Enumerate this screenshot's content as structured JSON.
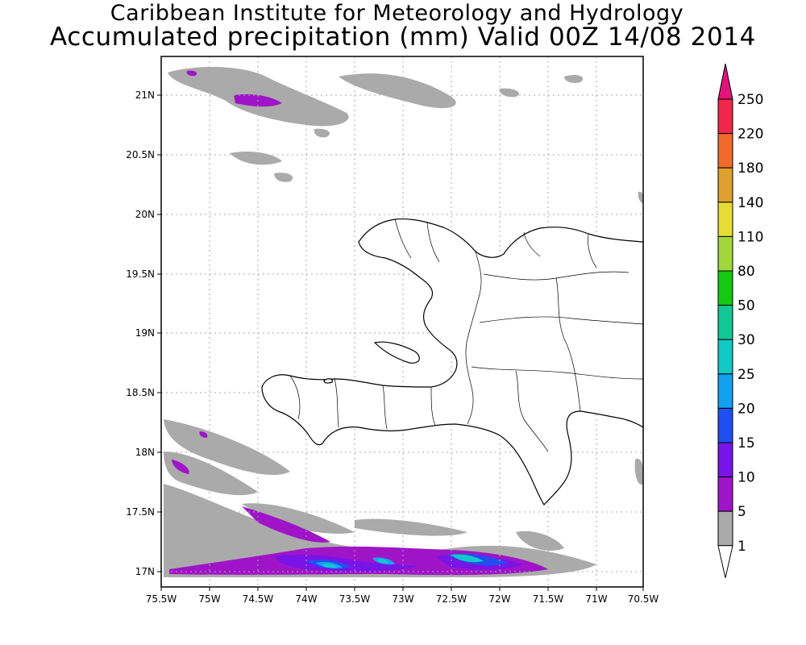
{
  "header": {
    "institute": "Caribbean Institute for Meteorology and Hydrology",
    "title": "Accumulated precipitation (mm) Valid 00Z 14/08 2014"
  },
  "map": {
    "lon_range": [
      -75.5,
      -70.5
    ],
    "lat_range": [
      16.9,
      21.3
    ],
    "grid": "dotted",
    "lon_ticks": [
      "75.5W",
      "75W",
      "74.5W",
      "74W",
      "73.5W",
      "73W",
      "72.5W",
      "72W",
      "71.5W",
      "71W",
      "70.5W"
    ],
    "lat_ticks": [
      "21N",
      "20.5N",
      "20N",
      "19.5N",
      "19N",
      "18.5N",
      "18N",
      "17.5N",
      "17N"
    ]
  },
  "colorbar": {
    "levels": [
      "250",
      "220",
      "180",
      "140",
      "110",
      "80",
      "50",
      "30",
      "25",
      "20",
      "15",
      "10",
      "5",
      "1"
    ],
    "colors": [
      "#f0264a",
      "#f06a2a",
      "#e0a030",
      "#e6dc38",
      "#a0d83c",
      "#14c814",
      "#14c896",
      "#14c8c8",
      "#14a0f0",
      "#1e50f0",
      "#7814e6",
      "#a014c8",
      "#aaaaaa",
      "#ffffff"
    ],
    "top_arrow_color": "#e0147a"
  },
  "colors": {
    "land_outline": "#000000",
    "precip_light": "#aaaaaa",
    "precip_5": "#a014c8",
    "precip_10": "#7814e6",
    "precip_15": "#1e50f0",
    "precip_20": "#14a0f0",
    "precip_25": "#14c8c8"
  }
}
